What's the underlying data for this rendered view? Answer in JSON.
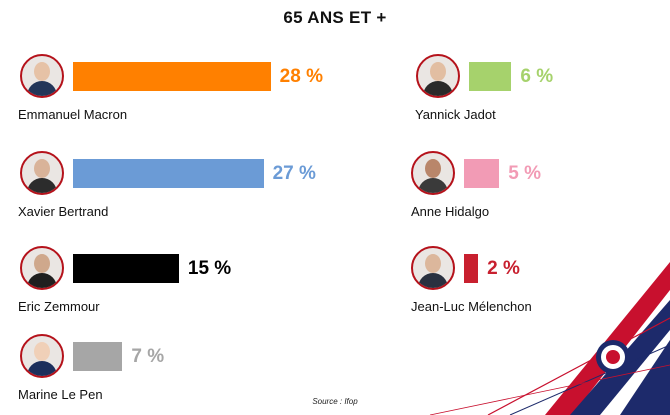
{
  "title": "65 ANS ET +",
  "source": "Source :  Ifop",
  "chart_data": {
    "type": "bar",
    "title": "65 ANS ET +",
    "unit": "%",
    "categories": [
      "Emmanuel Macron",
      "Xavier Bertrand",
      "Eric Zemmour",
      "Marine Le Pen",
      "Yannick Jadot",
      "Anne Hidalgo",
      "Jean-Luc Mélenchon"
    ],
    "values": [
      28,
      27,
      15,
      7,
      6,
      5,
      2
    ],
    "labels": [
      "28 %",
      "27 %",
      "15 %",
      "7 %",
      "6 %",
      "5 %",
      "2 %"
    ],
    "colors": [
      "#ff8000",
      "#6b9bd6",
      "#000000",
      "#a6a6a6",
      "#a6d26c",
      "#f29bb5",
      "#c8202f"
    ],
    "label_colors": [
      "#ff8000",
      "#6b9bd6",
      "#000000",
      "#a6a6a6",
      "#a6d26c",
      "#f29bb5",
      "#c8202f"
    ]
  }
}
